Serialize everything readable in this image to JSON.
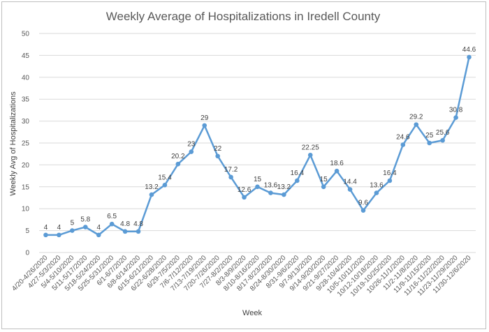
{
  "chart_data": {
    "type": "line",
    "title": "Weekly Average of Hospitalizations in Iredell County",
    "xlabel": "Week",
    "ylabel": "Weekly Avg of Hospitalizations",
    "ylim": [
      0,
      50
    ],
    "yticks": [
      0,
      5,
      10,
      15,
      20,
      25,
      30,
      35,
      40,
      45,
      50
    ],
    "grid": true,
    "legend": "none",
    "line_color": "#5B9BD5",
    "categories": [
      "4/20-4/26/2020",
      "4/27-5/3/2020",
      "5/4-5/10/2020",
      "5/11-5/17/2020",
      "5/18-5/24/2020",
      "5/25-5/31/2020",
      "6/1-6/7/2020",
      "6/8-6/14/2020",
      "6/15-6/21/2020",
      "6/22-6/28/2020",
      "6/29-7/5/2020",
      "7/6-7/12/2020",
      "7/13-7/19/2020",
      "7/20-7/26/2020",
      "7/27-8/2/2020",
      "8/3-8/9/2020",
      "8/10-8/16/2020",
      "8/17-8/23/2020",
      "8/24-8/30/2020",
      "8/31-9/6/2020",
      "9/7-9/13/2020",
      "9/14-9/20/2020",
      "9/21-9/27/2020",
      "9/28-10/4/2020",
      "10/5-10/11/2020",
      "10/12-10/18/2020",
      "10/19-10/25/2020",
      "10/26-11/1/2020",
      "11/2-11/8/2020",
      "11/9-11/15/2020",
      "11/16-11/22/2020",
      "11/23-11/29/2020",
      "11/30-12/6/2020"
    ],
    "values": [
      4,
      4,
      5,
      5.8,
      4,
      6.5,
      4.8,
      4.8,
      13.2,
      15.4,
      20.2,
      23,
      29,
      22,
      17.2,
      12.6,
      15,
      13.6,
      13.2,
      16.4,
      22.25,
      15,
      18.6,
      14.4,
      9.6,
      13.6,
      16.4,
      24.6,
      29.2,
      25,
      25.6,
      30.8,
      44.6
    ],
    "data_labels": [
      "4",
      "4",
      "5",
      "5.8",
      "4",
      "6.5",
      "4.8",
      "4.8",
      "13.2",
      "15.4",
      "20.2",
      "23",
      "29",
      "22",
      "17.2",
      "12.6",
      "15",
      "13.6",
      "13.2",
      "16.4",
      "22.25",
      "15",
      "18.6",
      "14.4",
      "9.6",
      "13.6",
      "16.4",
      "24.6",
      "29.2",
      "25",
      "25.6",
      "30.8",
      "44.6"
    ]
  }
}
